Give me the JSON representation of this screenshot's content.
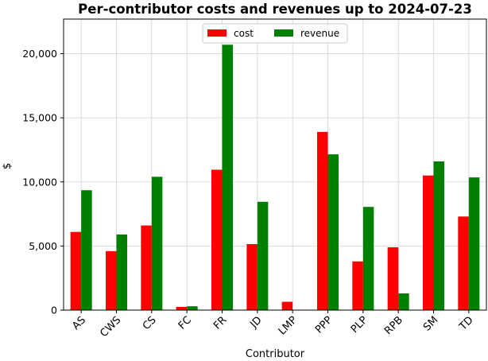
{
  "chart_data": {
    "type": "bar",
    "title": "Per-contributor costs and revenues up to 2024-07-23",
    "xlabel": "Contributor",
    "ylabel": "$",
    "ylim": [
      0,
      22700
    ],
    "yticks": [
      0,
      5000,
      10000,
      15000,
      20000
    ],
    "ytick_labels": [
      "0",
      "5,000",
      "10,000",
      "15,000",
      "20,000"
    ],
    "grid": true,
    "legend_position": "top-center",
    "categories": [
      "AS",
      "CWS",
      "CS",
      "FC",
      "FR",
      "JD",
      "LMP",
      "PPP",
      "PLP",
      "RPB",
      "SM",
      "TD"
    ],
    "series": [
      {
        "name": "cost",
        "color": "#ff0000",
        "values": [
          6100,
          4600,
          6600,
          250,
          10950,
          5150,
          650,
          13900,
          3800,
          4900,
          10500,
          7300
        ]
      },
      {
        "name": "revenue",
        "color": "#008000",
        "values": [
          9350,
          5900,
          10400,
          300,
          20700,
          8450,
          0,
          12150,
          8050,
          1300,
          11600,
          10350
        ]
      }
    ]
  }
}
